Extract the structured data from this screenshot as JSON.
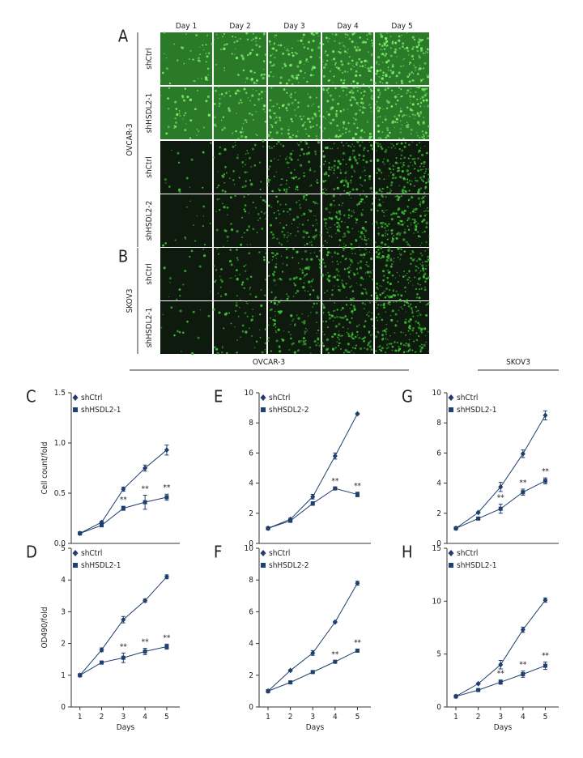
{
  "figure": {
    "panel_a": "A",
    "panel_b": "B",
    "day_headers": [
      "Day 1",
      "Day 2",
      "Day 3",
      "Day 4",
      "Day 5"
    ],
    "groups": [
      {
        "label": "OVCAR-3",
        "rows": [
          "shCtrl",
          "shHSDL2-1",
          "shCtrl",
          "shHSDL2-2"
        ]
      },
      {
        "label": "SKOV3",
        "rows": [
          "shCtrl",
          "shHSDL2-1"
        ]
      }
    ],
    "chart_headers": [
      "OVCAR-3",
      "SKOV3"
    ]
  },
  "chart_data": [
    {
      "type": "line",
      "panel": "C",
      "ylabel": "Cell count/fold",
      "x": [
        1,
        2,
        3,
        4,
        5
      ],
      "xlim": [
        0.6,
        5.6
      ],
      "ylim": [
        0,
        1.5
      ],
      "yticks": [
        {
          "value": 0,
          "label": "0.0"
        },
        {
          "value": 0.5,
          "label": "0.5"
        },
        {
          "value": 1,
          "label": "1.0"
        },
        {
          "value": 1.5,
          "label": "1.5"
        }
      ],
      "series": [
        {
          "name": "shCtrl",
          "color": "#1f3f6e",
          "marker": "diamond",
          "values": [
            0.1,
            0.21,
            0.54,
            0.75,
            0.93
          ],
          "errors": [
            0.01,
            0.01,
            0.02,
            0.03,
            0.05
          ]
        },
        {
          "name": "shHSDL2-1",
          "color": "#1f3f6e",
          "marker": "square",
          "values": [
            0.1,
            0.18,
            0.35,
            0.41,
            0.46
          ],
          "errors": [
            0.01,
            0.01,
            0.02,
            0.07,
            0.03
          ]
        }
      ],
      "annotations": [
        {
          "text": "**",
          "x": 3
        },
        {
          "text": "**",
          "x": 4
        },
        {
          "text": "**",
          "x": 5
        }
      ]
    },
    {
      "type": "line",
      "panel": "D",
      "ylabel": "OD490/fold",
      "xlabel": "Days",
      "x": [
        1,
        2,
        3,
        4,
        5
      ],
      "xlim": [
        0.6,
        5.6
      ],
      "xticks": [
        1,
        2,
        3,
        4,
        5
      ],
      "ylim": [
        0,
        5
      ],
      "yticks": [
        0,
        1,
        2,
        3,
        4,
        5
      ],
      "series": [
        {
          "name": "shCtrl",
          "color": "#1f3f6e",
          "marker": "diamond",
          "values": [
            1,
            1.8,
            2.75,
            3.35,
            4.1
          ],
          "errors": [
            0.03,
            0.06,
            0.1,
            0.05,
            0.06
          ]
        },
        {
          "name": "shHSDL2-1",
          "color": "#1f3f6e",
          "marker": "square",
          "values": [
            1,
            1.4,
            1.55,
            1.75,
            1.9
          ],
          "errors": [
            0.03,
            0.04,
            0.15,
            0.1,
            0.08
          ]
        }
      ],
      "annotations": [
        {
          "text": "**",
          "x": 3
        },
        {
          "text": "**",
          "x": 4
        },
        {
          "text": "**",
          "x": 5
        }
      ]
    },
    {
      "type": "line",
      "panel": "E",
      "x": [
        1,
        2,
        3,
        4,
        5
      ],
      "xlim": [
        0.6,
        5.6
      ],
      "ylim": [
        0,
        10
      ],
      "yticks": [
        0,
        2,
        4,
        6,
        8,
        10
      ],
      "series": [
        {
          "name": "shCtrl",
          "color": "#1f3f6e",
          "marker": "diamond",
          "values": [
            1,
            1.6,
            3.1,
            5.8,
            8.6
          ],
          "errors": [
            0.03,
            0.08,
            0.15,
            0.2,
            0.05
          ]
        },
        {
          "name": "shHSDL2-2",
          "color": "#1f3f6e",
          "marker": "square",
          "values": [
            1,
            1.5,
            2.65,
            3.65,
            3.25
          ],
          "errors": [
            0.03,
            0.05,
            0.12,
            0.05,
            0.15
          ]
        }
      ],
      "annotations": [
        {
          "text": "**",
          "x": 4
        },
        {
          "text": "**",
          "x": 5
        }
      ]
    },
    {
      "type": "line",
      "panel": "F",
      "xlabel": "Days",
      "x": [
        1,
        2,
        3,
        4,
        5
      ],
      "xlim": [
        0.6,
        5.6
      ],
      "xticks": [
        1,
        2,
        3,
        4,
        5
      ],
      "ylim": [
        0,
        10
      ],
      "yticks": [
        0,
        2,
        4,
        6,
        8,
        10
      ],
      "series": [
        {
          "name": "shCtrl",
          "color": "#1f3f6e",
          "marker": "diamond",
          "values": [
            1,
            2.3,
            3.4,
            5.35,
            7.8
          ],
          "errors": [
            0.03,
            0.05,
            0.15,
            0.05,
            0.12
          ]
        },
        {
          "name": "shHSDL2-2",
          "color": "#1f3f6e",
          "marker": "square",
          "values": [
            1,
            1.55,
            2.2,
            2.85,
            3.55
          ],
          "errors": [
            0.03,
            0.05,
            0.05,
            0.05,
            0.1
          ]
        }
      ],
      "annotations": [
        {
          "text": "**",
          "x": 4
        },
        {
          "text": "**",
          "x": 5
        }
      ]
    },
    {
      "type": "line",
      "panel": "G",
      "x": [
        1,
        2,
        3,
        4,
        5
      ],
      "xlim": [
        0.6,
        5.6
      ],
      "ylim": [
        0,
        10
      ],
      "yticks": [
        0,
        2,
        4,
        6,
        8,
        10
      ],
      "series": [
        {
          "name": "shCtrl",
          "color": "#1f3f6e",
          "marker": "diamond",
          "values": [
            1,
            2.05,
            3.75,
            5.95,
            8.5
          ],
          "errors": [
            0.03,
            0.05,
            0.3,
            0.25,
            0.3
          ]
        },
        {
          "name": "shHSDL2-1",
          "color": "#1f3f6e",
          "marker": "square",
          "values": [
            1,
            1.65,
            2.3,
            3.4,
            4.15
          ],
          "errors": [
            0.03,
            0.05,
            0.3,
            0.2,
            0.2
          ]
        }
      ],
      "annotations": [
        {
          "text": "**",
          "x": 3
        },
        {
          "text": "**",
          "x": 4
        },
        {
          "text": "**",
          "x": 5
        }
      ]
    },
    {
      "type": "line",
      "panel": "H",
      "xlabel": "Days",
      "x": [
        1,
        2,
        3,
        4,
        5
      ],
      "xlim": [
        0.6,
        5.6
      ],
      "xticks": [
        1,
        2,
        3,
        4,
        5
      ],
      "ylim": [
        0,
        15
      ],
      "yticks": [
        0,
        5,
        10,
        15
      ],
      "series": [
        {
          "name": "shCtrl",
          "color": "#1f3f6e",
          "marker": "diamond",
          "values": [
            1,
            2.2,
            4.0,
            7.3,
            10.1
          ],
          "errors": [
            0.03,
            0.05,
            0.4,
            0.25,
            0.2
          ]
        },
        {
          "name": "shHSDL2-1",
          "color": "#1f3f6e",
          "marker": "square",
          "values": [
            1,
            1.6,
            2.35,
            3.1,
            3.9
          ],
          "errors": [
            0.03,
            0.05,
            0.2,
            0.3,
            0.35
          ]
        }
      ],
      "annotations": [
        {
          "text": "**",
          "x": 3
        },
        {
          "text": "**",
          "x": 4
        },
        {
          "text": "**",
          "x": 5
        }
      ]
    }
  ]
}
